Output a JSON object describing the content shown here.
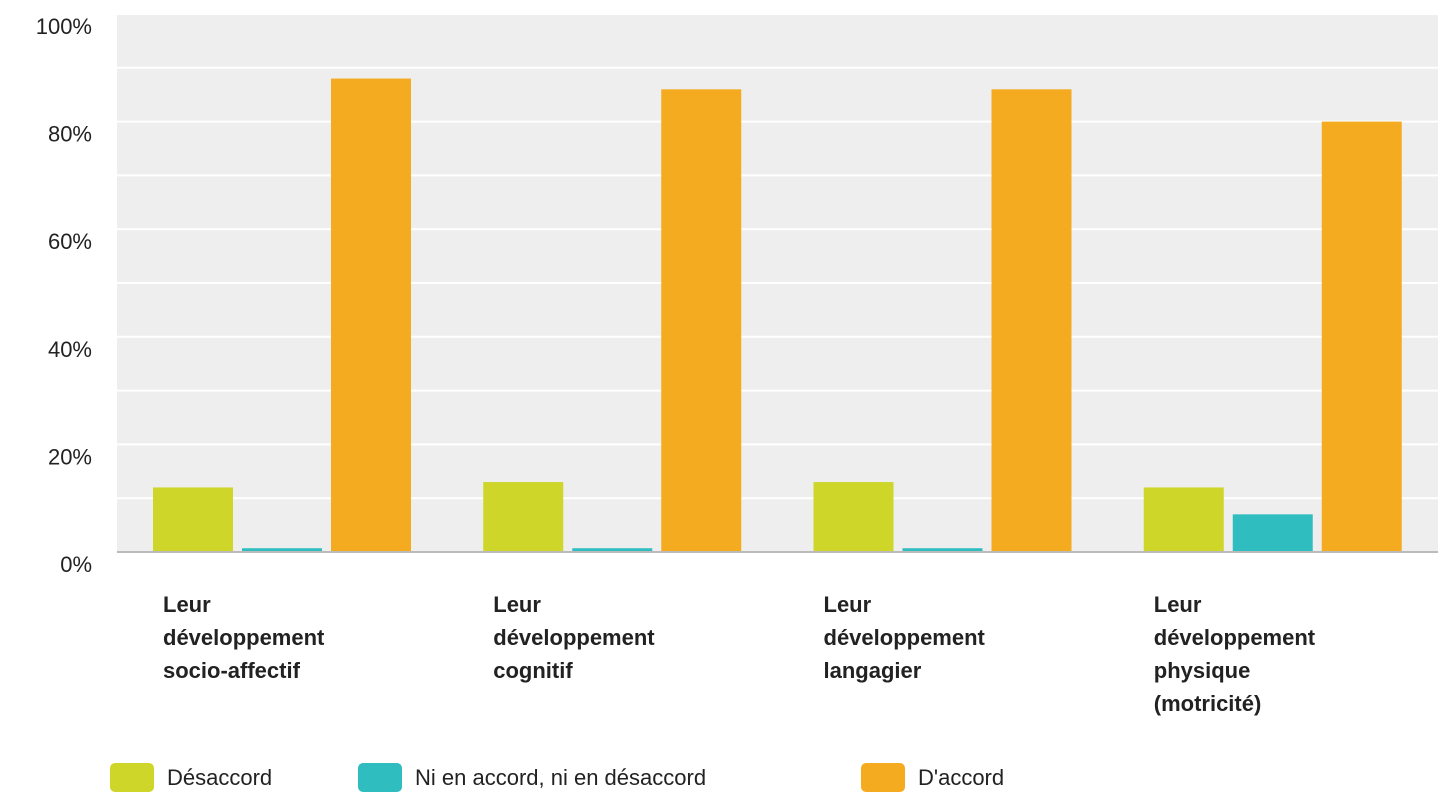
{
  "chart_data": {
    "type": "bar",
    "categories": [
      [
        "Leur",
        "développement",
        "socio-affectif"
      ],
      [
        "Leur",
        "développement",
        "cognitif"
      ],
      [
        "Leur",
        "développement",
        "langagier"
      ],
      [
        "Leur",
        "développement",
        "physique",
        "(motricité)"
      ]
    ],
    "series": [
      {
        "name": "Désaccord",
        "color": "#cdd629",
        "values": [
          12,
          13,
          13,
          12
        ]
      },
      {
        "name": "Ni en accord, ni en désaccord",
        "color": "#30bdc0",
        "values": [
          0.7,
          0.7,
          0.7,
          7
        ]
      },
      {
        "name": "D'accord",
        "color": "#f5ab1f",
        "values": [
          88,
          86,
          86,
          80
        ]
      }
    ],
    "yticks": [
      "0%",
      "20%",
      "40%",
      "60%",
      "80%",
      "100%"
    ],
    "ylim": [
      0,
      100
    ],
    "grid": true,
    "minor_grid": true,
    "legend": "bottom",
    "plot_background": "#eeeeee"
  }
}
